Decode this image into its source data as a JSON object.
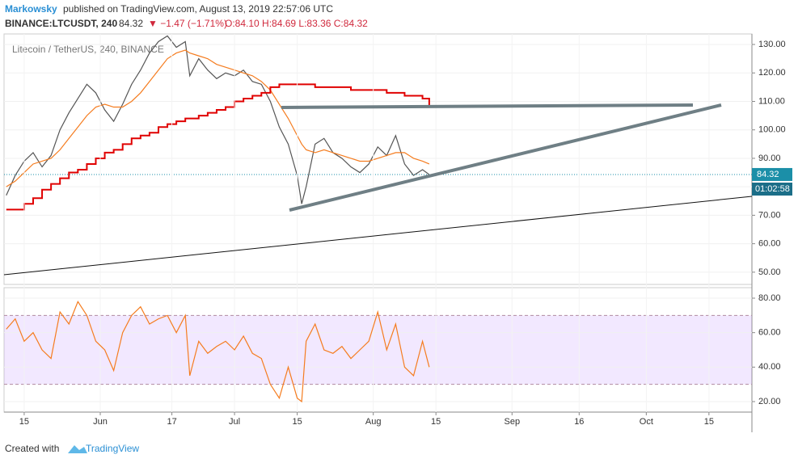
{
  "header": {
    "author": "Markowsky",
    "published": "published on TradingView.com, August 13, 2019 22:57:06 UTC",
    "symbol": "BINANCE:LTCUSDT, 240",
    "price": "84.32",
    "change": "▼ −1.47 (−1.71%)",
    "ohlc": "O:84.10 H:84.69 L:83.36 C:84.32"
  },
  "legend": "Litecoin / TetherUS, 240, BINANCE",
  "countdown": "01:02:58",
  "footer": {
    "prefix": "Created with",
    "brand": "TradingView"
  },
  "chart_data": [
    {
      "type": "line",
      "x": [
        131,
        133,
        135,
        137,
        139,
        141,
        143,
        145,
        147,
        149,
        151,
        153,
        155,
        157,
        159,
        161,
        163,
        165,
        167,
        169,
        171,
        172,
        174,
        176,
        178,
        180,
        182,
        184,
        186,
        188,
        190,
        192,
        194,
        196,
        197,
        198,
        200,
        202,
        204,
        206,
        208,
        210,
        212,
        214,
        216,
        218,
        220,
        222,
        224,
        225.5
      ],
      "xlim": [
        130.5,
        297.6
      ],
      "ylim": [
        45.7,
        133.7
      ],
      "yticks": [
        {
          "value": 50,
          "label": "50.00"
        },
        {
          "value": 60,
          "label": "60.00"
        },
        {
          "value": 70,
          "label": "70.00"
        },
        {
          "value": 80,
          "label": "80.00"
        },
        {
          "value": 90,
          "label": "90.00"
        },
        {
          "value": 100,
          "label": "100.00"
        },
        {
          "value": 110,
          "label": "110.00"
        },
        {
          "value": 120,
          "label": "120.00"
        },
        {
          "value": 130,
          "label": "130.00"
        }
      ],
      "series": [
        {
          "color": "#555555",
          "values": [
            77,
            84,
            89,
            92,
            87,
            91,
            100,
            106,
            111,
            116,
            113,
            107,
            103,
            109,
            116,
            121,
            127,
            131,
            133,
            129,
            131,
            119,
            125,
            121,
            118,
            120,
            119,
            121,
            117,
            116,
            110,
            101,
            95,
            84,
            74,
            80,
            95,
            97,
            92,
            90,
            87,
            85,
            88,
            94,
            91,
            98,
            88,
            84,
            86,
            84.32
          ]
        },
        {
          "color": "#f57c1f",
          "values": [
            80,
            82,
            85,
            88,
            89,
            90,
            93,
            97,
            101,
            105,
            108,
            109,
            108,
            108,
            110,
            113,
            117,
            121,
            125,
            127,
            128,
            127,
            126,
            125,
            123,
            122,
            121,
            120,
            119,
            117,
            114,
            109,
            104,
            98,
            95,
            93,
            92,
            93,
            92,
            91,
            90,
            89,
            89,
            90,
            91,
            92,
            92,
            90,
            89,
            88
          ]
        },
        {
          "color": "#e00000",
          "step": true,
          "values": [
            72,
            72,
            74,
            76,
            79,
            81,
            83,
            85,
            86,
            88,
            90,
            92,
            93,
            95,
            97,
            98,
            99,
            101,
            102,
            103,
            104,
            104,
            105,
            106,
            107,
            108,
            110,
            111,
            112,
            113,
            115,
            116,
            116,
            116,
            116,
            116,
            115,
            115,
            115,
            115,
            114,
            114,
            114,
            114,
            113,
            113,
            112,
            112,
            111,
            108
          ]
        }
      ]
    },
    {
      "type": "line",
      "x": [
        131,
        133,
        135,
        137,
        139,
        141,
        143,
        145,
        147,
        149,
        151,
        153,
        155,
        157,
        159,
        161,
        163,
        165,
        167,
        169,
        171,
        172,
        174,
        176,
        178,
        180,
        182,
        184,
        186,
        188,
        190,
        192,
        194,
        196,
        197,
        198,
        200,
        202,
        204,
        206,
        208,
        210,
        212,
        214,
        216,
        218,
        220,
        222,
        224,
        225.5
      ],
      "xlim": [
        130.5,
        297.6
      ],
      "xticks": [
        {
          "value": 135,
          "label": "15"
        },
        {
          "value": 152,
          "label": "Jun"
        },
        {
          "value": 168,
          "label": "17"
        },
        {
          "value": 182,
          "label": "Jul"
        },
        {
          "value": 196,
          "label": "15"
        },
        {
          "value": 213,
          "label": "Aug"
        },
        {
          "value": 227,
          "label": "15"
        },
        {
          "value": 244,
          "label": "Sep"
        },
        {
          "value": 259,
          "label": "16"
        },
        {
          "value": 274,
          "label": "Oct"
        },
        {
          "value": 288,
          "label": "15"
        }
      ],
      "ylim": [
        13.9,
        86.1
      ],
      "yticks": [
        {
          "value": 20,
          "label": "20.00"
        },
        {
          "value": 40,
          "label": "40.00"
        },
        {
          "value": 60,
          "label": "60.00"
        },
        {
          "value": 80,
          "label": "80.00"
        }
      ],
      "band": [
        30,
        70
      ],
      "series": [
        {
          "color": "#f57c1f",
          "values": [
            62,
            68,
            55,
            60,
            50,
            45,
            72,
            65,
            78,
            70,
            55,
            50,
            38,
            60,
            70,
            75,
            65,
            68,
            70,
            60,
            70,
            35,
            55,
            48,
            52,
            55,
            50,
            58,
            48,
            45,
            30,
            22,
            40,
            22,
            20,
            55,
            65,
            50,
            48,
            52,
            45,
            50,
            55,
            72,
            50,
            65,
            40,
            35,
            55,
            40
          ]
        }
      ]
    }
  ]
}
